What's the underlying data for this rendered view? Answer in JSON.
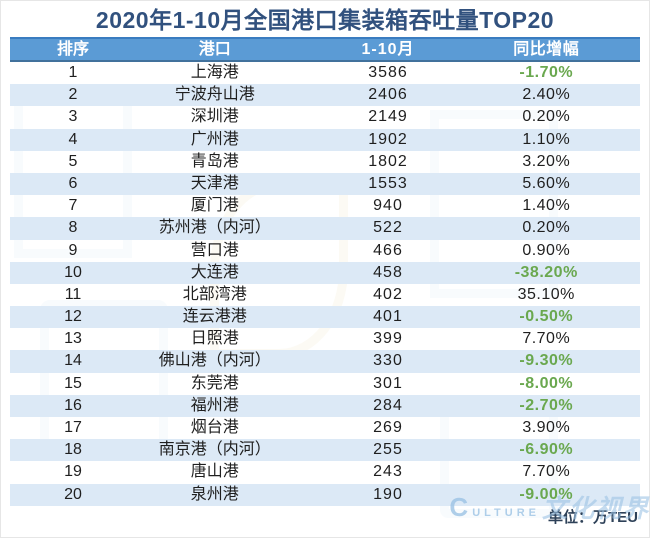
{
  "title": "2020年1-10月全国港口集装箱吞吐量TOP20",
  "table": {
    "headers": [
      "排序",
      "港口",
      "1-10月",
      "同比增幅"
    ],
    "rows": [
      {
        "rank": "1",
        "port": "上海港",
        "value": "3586",
        "growth": "-1.70%",
        "negative": true
      },
      {
        "rank": "2",
        "port": "宁波舟山港",
        "value": "2406",
        "growth": "2.40%",
        "negative": false
      },
      {
        "rank": "3",
        "port": "深圳港",
        "value": "2149",
        "growth": "0.20%",
        "negative": false
      },
      {
        "rank": "4",
        "port": "广州港",
        "value": "1902",
        "growth": "1.10%",
        "negative": false
      },
      {
        "rank": "5",
        "port": "青岛港",
        "value": "1802",
        "growth": "3.20%",
        "negative": false
      },
      {
        "rank": "6",
        "port": "天津港",
        "value": "1553",
        "growth": "5.60%",
        "negative": false
      },
      {
        "rank": "7",
        "port": "厦门港",
        "value": "940",
        "growth": "1.40%",
        "negative": false
      },
      {
        "rank": "8",
        "port": "苏州港（内河）",
        "value": "522",
        "growth": "0.20%",
        "negative": false
      },
      {
        "rank": "9",
        "port": "营口港",
        "value": "466",
        "growth": "0.90%",
        "negative": false
      },
      {
        "rank": "10",
        "port": "大连港",
        "value": "458",
        "growth": "-38.20%",
        "negative": true
      },
      {
        "rank": "11",
        "port": "北部湾港",
        "value": "402",
        "growth": "35.10%",
        "negative": false
      },
      {
        "rank": "12",
        "port": "连云港港",
        "value": "401",
        "growth": "-0.50%",
        "negative": true
      },
      {
        "rank": "13",
        "port": "日照港",
        "value": "399",
        "growth": "7.70%",
        "negative": false
      },
      {
        "rank": "14",
        "port": "佛山港（内河）",
        "value": "330",
        "growth": "-9.30%",
        "negative": true
      },
      {
        "rank": "15",
        "port": "东莞港",
        "value": "301",
        "growth": "-8.00%",
        "negative": true
      },
      {
        "rank": "16",
        "port": "福州港",
        "value": "284",
        "growth": "-2.70%",
        "negative": true
      },
      {
        "rank": "17",
        "port": "烟台港",
        "value": "269",
        "growth": "3.90%",
        "negative": false
      },
      {
        "rank": "18",
        "port": "南京港（内河）",
        "value": "255",
        "growth": "-6.90%",
        "negative": true
      },
      {
        "rank": "19",
        "port": "唐山港",
        "value": "243",
        "growth": "7.70%",
        "negative": false
      },
      {
        "rank": "20",
        "port": "泉州港",
        "value": "190",
        "growth": "-9.00%",
        "negative": true
      }
    ]
  },
  "footer": {
    "unit_label": "单位：万TEU"
  },
  "watermark": {
    "latin": "CULTURE",
    "cjk": "文化视界"
  },
  "colors": {
    "header_bg": "#5b9bd5",
    "header_border_top": "#3a7cc0",
    "header_border_bottom": "#41719c",
    "header_text": "#ffffff",
    "row_alt": "#dce9f6",
    "title_text": "#31517e",
    "body_text": "#1f1f1f",
    "negative_green": "#6aa84f",
    "unit_text": "#2e4158",
    "watermark_blue": "#9cc3e5"
  },
  "chart_data": {
    "type": "table",
    "title": "2020年1-10月全国港口集装箱吞吐量TOP20",
    "columns": [
      "排序",
      "港口",
      "1-10月",
      "同比增幅"
    ],
    "unit": "万TEU",
    "rows": [
      [
        1,
        "上海港",
        3586,
        -1.7
      ],
      [
        2,
        "宁波舟山港",
        2406,
        2.4
      ],
      [
        3,
        "深圳港",
        2149,
        0.2
      ],
      [
        4,
        "广州港",
        1902,
        1.1
      ],
      [
        5,
        "青岛港",
        1802,
        3.2
      ],
      [
        6,
        "天津港",
        1553,
        5.6
      ],
      [
        7,
        "厦门港",
        940,
        1.4
      ],
      [
        8,
        "苏州港（内河）",
        522,
        0.2
      ],
      [
        9,
        "营口港",
        466,
        0.9
      ],
      [
        10,
        "大连港",
        458,
        -38.2
      ],
      [
        11,
        "北部湾港",
        402,
        35.1
      ],
      [
        12,
        "连云港港",
        401,
        -0.5
      ],
      [
        13,
        "日照港",
        399,
        7.7
      ],
      [
        14,
        "佛山港（内河）",
        330,
        -9.3
      ],
      [
        15,
        "东莞港",
        301,
        -8.0
      ],
      [
        16,
        "福州港",
        284,
        -2.7
      ],
      [
        17,
        "烟台港",
        269,
        3.9
      ],
      [
        18,
        "南京港（内河）",
        255,
        -6.9
      ],
      [
        19,
        "唐山港",
        243,
        7.7
      ],
      [
        20,
        "泉州港",
        190,
        -9.0
      ]
    ],
    "notes": "negative growth values rendered in bold green"
  }
}
